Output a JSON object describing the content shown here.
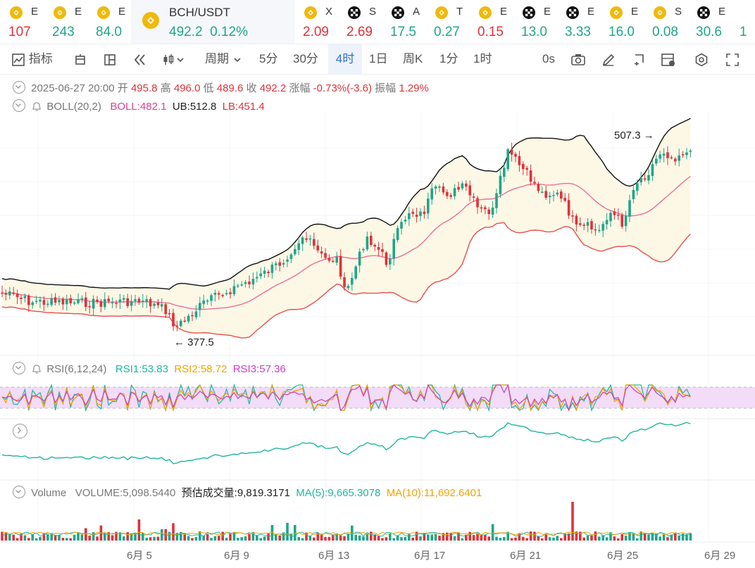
{
  "tickers": [
    {
      "name": "E",
      "price": "107",
      "dir": "dn",
      "icon": "binance-coin-icon"
    },
    {
      "name": "E",
      "price": "243",
      "dir": "up",
      "icon": "binance-coin-icon"
    },
    {
      "name": "E",
      "price": "84.0",
      "dir": "up",
      "icon": "binance-coin-icon"
    },
    {
      "name": "BCH/USDT",
      "price": "492.2",
      "change": "0.12%",
      "dir": "up",
      "icon": "binance-coin-icon",
      "active": true
    },
    {
      "name": "X",
      "price": "2.09",
      "dir": "dn",
      "icon": "binance-coin-icon"
    },
    {
      "name": "S",
      "price": "2.69",
      "dir": "dn",
      "icon": "okx-icon"
    },
    {
      "name": "A",
      "price": "17.5",
      "dir": "up",
      "icon": "okx-icon"
    },
    {
      "name": "T",
      "price": "0.27",
      "dir": "up",
      "icon": "binance-coin-icon"
    },
    {
      "name": "E",
      "price": "0.15",
      "dir": "dn",
      "icon": "binance-coin-icon"
    },
    {
      "name": "E",
      "price": "13.0",
      "dir": "up",
      "icon": "okx-icon"
    },
    {
      "name": "E",
      "price": "3.33",
      "dir": "up",
      "icon": "okx-icon"
    },
    {
      "name": "E",
      "price": "16.0",
      "dir": "up",
      "icon": "binance-coin-icon"
    },
    {
      "name": "S",
      "price": "0.08",
      "dir": "up",
      "icon": "binance-coin-icon"
    },
    {
      "name": "E",
      "price": "30.6",
      "dir": "up",
      "icon": "okx-icon"
    },
    {
      "name": "",
      "price": "1",
      "dir": "up",
      "icon": ""
    }
  ],
  "toolbar": {
    "indicators": "指标",
    "period": "周期",
    "intervals": [
      "5分",
      "30分",
      "4时",
      "1日",
      "周K",
      "1分",
      "1时"
    ],
    "selected_interval": "4时",
    "countdown": "0s"
  },
  "ohlc": {
    "date": "2025-06-27 20:00",
    "open_label": "开",
    "open": "495.8",
    "high_label": "高",
    "high": "496.0",
    "low_label": "低",
    "low": "489.6",
    "close_label": "收",
    "close": "492.2",
    "change_label": "涨幅",
    "change": "-0.73%(-3.6)",
    "amp_label": "振幅",
    "amp": "1.29%"
  },
  "boll": {
    "name": "BOLL(20,2)",
    "boll": "BOLL:482.1",
    "ub": "UB:512.8",
    "lb": "LB:451.4"
  },
  "rsi": {
    "name": "RSI(6,12,24)",
    "rsi1": "RSI1:53.83",
    "rsi2": "RSI2:58.72",
    "rsi3": "RSI3:57.36"
  },
  "volume": {
    "name": "Volume",
    "volume": "VOLUME:5,098.5440",
    "est": "预估成交量:9,819.3171",
    "ma5": "MA(5):9,665.3078",
    "ma10": "MA(10):11,692.6401"
  },
  "annotations": {
    "high": "507.3 →",
    "low": "← 377.5"
  },
  "x_axis": [
    "6月 5",
    "6月 9",
    "6月 13",
    "6月 17",
    "6月 21",
    "6月 25",
    "6月 29"
  ],
  "colors": {
    "up": "#1fa58b",
    "down": "#e0313a",
    "band_fill": "#fdf8e6",
    "rsi_band": "#f2dcf8",
    "active_tab": "#2f6fd8"
  }
}
